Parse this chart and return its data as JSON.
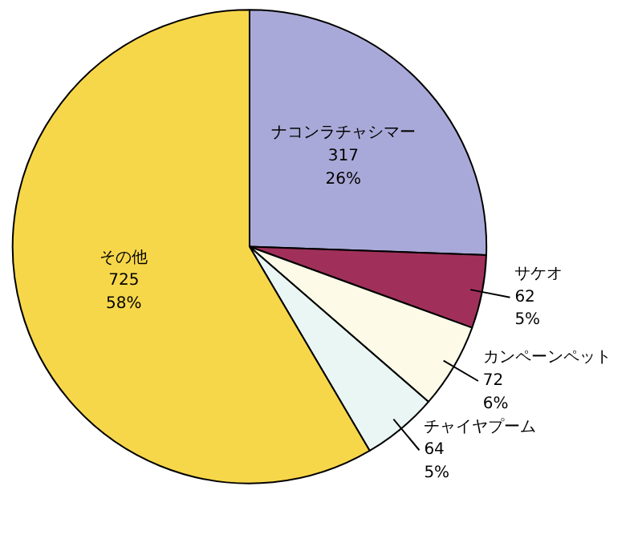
{
  "chart_data": {
    "type": "pie",
    "categories": [
      "ナコンラチャシマー",
      "サケオ",
      "カンペーンペット",
      "チャイヤプーム",
      "その他"
    ],
    "values": [
      317,
      62,
      72,
      64,
      725
    ],
    "colors": [
      "#a9a9d9",
      "#a0305a",
      "#fdfbe8",
      "#eaf6f4",
      "#f7d74a"
    ],
    "value_labels": [
      "317\n26%",
      "62\n5%",
      "72\n6%",
      "64\n5%",
      "725\n58%"
    ]
  }
}
